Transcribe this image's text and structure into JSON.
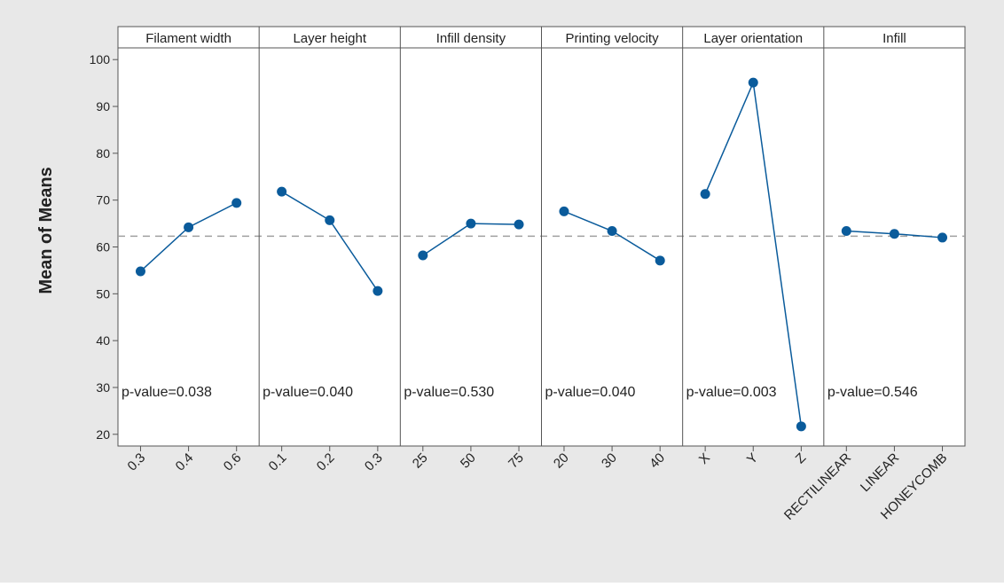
{
  "chart_data": {
    "type": "line",
    "ylabel": "Mean of Means",
    "ylim": [
      17.5,
      102.5
    ],
    "yticks": [
      20,
      30,
      40,
      50,
      60,
      70,
      80,
      90,
      100
    ],
    "reference_line": 62.3,
    "grid": false,
    "legend": "none",
    "colors": {
      "outer_background": "#e8e8e8",
      "plot_background": "#ffffff",
      "series": "#0a5b9b",
      "reference_line": "#a0a0a0",
      "frame": "#555555"
    },
    "panels": [
      {
        "title": "Filament width",
        "categories": [
          "0.3",
          "0.4",
          "0.6"
        ],
        "values": [
          54.8,
          64.2,
          69.4
        ],
        "annotation": "p-value=0.038"
      },
      {
        "title": "Layer height",
        "categories": [
          "0.1",
          "0.2",
          "0.3"
        ],
        "values": [
          71.8,
          65.7,
          50.6
        ],
        "annotation": "p-value=0.040"
      },
      {
        "title": "Infill density",
        "categories": [
          "25",
          "50",
          "75"
        ],
        "values": [
          58.2,
          65.0,
          64.8
        ],
        "annotation": "p-value=0.530"
      },
      {
        "title": "Printing velocity",
        "categories": [
          "20",
          "30",
          "40"
        ],
        "values": [
          67.6,
          63.4,
          57.1
        ],
        "annotation": "p-value=0.040"
      },
      {
        "title": "Layer orientation",
        "categories": [
          "X",
          "Y",
          "Z"
        ],
        "values": [
          71.3,
          95.1,
          21.7
        ],
        "annotation": "p-value=0.003"
      },
      {
        "title": "Infill",
        "categories": [
          "RECTILINEAR",
          "LINEAR",
          "HONEYCOMB"
        ],
        "values": [
          63.4,
          62.8,
          62.0
        ],
        "annotation": "p-value=0.546"
      }
    ]
  }
}
